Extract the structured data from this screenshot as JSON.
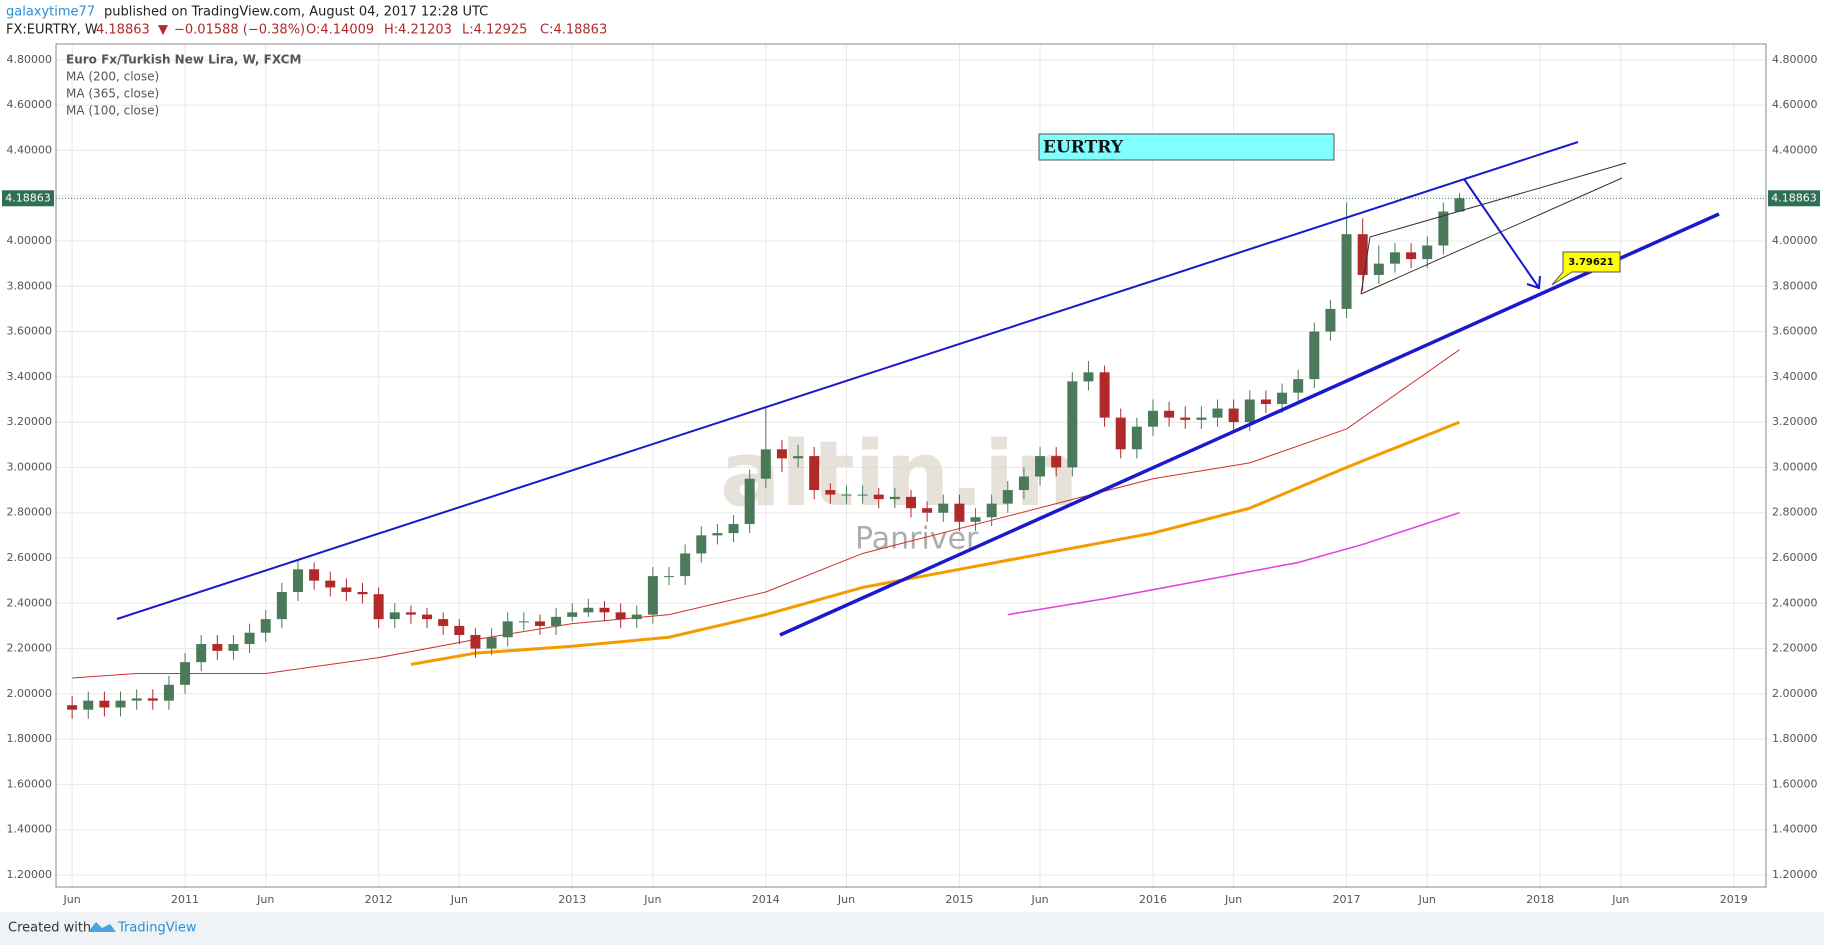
{
  "header": {
    "author": "galaxytime77",
    "published": "published on TradingView.com, August 04, 2017 12:28 UTC",
    "symbol": "FX:EURTRY, W",
    "price": "4.18863",
    "change": "−0.01588 (−0.38%)",
    "open": "O:4.14009",
    "high": "H:4.21203",
    "low": "L:4.12925",
    "close": "C:4.18863"
  },
  "footer": {
    "created": "Created with",
    "brand": "TradingView"
  },
  "watermark": {
    "logo": "altin.in",
    "name": "Panriver"
  },
  "chart_data": {
    "type": "candlestick",
    "title": "Euro Fx/Turkish New Lira, W, FXCM",
    "annotation": "EURTRY",
    "target_label": 3.79621,
    "last_price": 4.18863,
    "last_price_color": "#2f6f55",
    "grid": true,
    "xlim": [
      "2010-05",
      "2019-03"
    ],
    "ylim": [
      1.147,
      4.87
    ],
    "xticks": [
      {
        "value": "2010-06",
        "label": "Jun"
      },
      {
        "value": "2011-01",
        "label": "2011"
      },
      {
        "value": "2011-06",
        "label": "Jun"
      },
      {
        "value": "2012-01",
        "label": "2012"
      },
      {
        "value": "2012-06",
        "label": "Jun"
      },
      {
        "value": "2013-01",
        "label": "2013"
      },
      {
        "value": "2013-06",
        "label": "Jun"
      },
      {
        "value": "2014-01",
        "label": "2014"
      },
      {
        "value": "2014-06",
        "label": "Jun"
      },
      {
        "value": "2015-01",
        "label": "2015"
      },
      {
        "value": "2015-06",
        "label": "Jun"
      },
      {
        "value": "2016-01",
        "label": "2016"
      },
      {
        "value": "2016-06",
        "label": "Jun"
      },
      {
        "value": "2017-01",
        "label": "2017"
      },
      {
        "value": "2017-06",
        "label": "Jun"
      },
      {
        "value": "2018-01",
        "label": "2018"
      },
      {
        "value": "2018-06",
        "label": "Jun"
      },
      {
        "value": "2019-01",
        "label": "2019"
      }
    ],
    "yticks": [
      {
        "value": 1.2,
        "label": "1.20000"
      },
      {
        "value": 1.4,
        "label": "1.40000"
      },
      {
        "value": 1.6,
        "label": "1.60000"
      },
      {
        "value": 1.8,
        "label": "1.80000"
      },
      {
        "value": 2.0,
        "label": "2.00000"
      },
      {
        "value": 2.2,
        "label": "2.20000"
      },
      {
        "value": 2.4,
        "label": "2.40000"
      },
      {
        "value": 2.6,
        "label": "2.60000"
      },
      {
        "value": 2.8,
        "label": "2.80000"
      },
      {
        "value": 3.0,
        "label": "3.00000"
      },
      {
        "value": 3.2,
        "label": "3.20000"
      },
      {
        "value": 3.4,
        "label": "3.40000"
      },
      {
        "value": 3.6,
        "label": "3.60000"
      },
      {
        "value": 3.8,
        "label": "3.80000"
      },
      {
        "value": 4.0,
        "label": "4.00000"
      },
      {
        "value": 4.2,
        "label": "4.20000"
      },
      {
        "value": 4.4,
        "label": "4.40000"
      },
      {
        "value": 4.6,
        "label": "4.60000"
      },
      {
        "value": 4.8,
        "label": "4.80000"
      }
    ],
    "candles": {
      "up_color": "#4a7a5a",
      "down_color": "#b02a2a",
      "x": [
        "2010-06",
        "2010-07",
        "2010-08",
        "2010-09",
        "2010-10",
        "2010-11",
        "2010-12",
        "2011-01",
        "2011-02",
        "2011-03",
        "2011-04",
        "2011-05",
        "2011-06",
        "2011-07",
        "2011-08",
        "2011-09",
        "2011-10",
        "2011-11",
        "2011-12",
        "2012-01",
        "2012-02",
        "2012-03",
        "2012-04",
        "2012-05",
        "2012-06",
        "2012-07",
        "2012-08",
        "2012-09",
        "2012-10",
        "2012-11",
        "2012-12",
        "2013-01",
        "2013-02",
        "2013-03",
        "2013-04",
        "2013-05",
        "2013-06",
        "2013-07",
        "2013-08",
        "2013-09",
        "2013-10",
        "2013-11",
        "2013-12",
        "2014-01",
        "2014-02",
        "2014-03",
        "2014-04",
        "2014-05",
        "2014-06",
        "2014-07",
        "2014-08",
        "2014-09",
        "2014-10",
        "2014-11",
        "2014-12",
        "2015-01",
        "2015-02",
        "2015-03",
        "2015-04",
        "2015-05",
        "2015-06",
        "2015-07",
        "2015-08",
        "2015-09",
        "2015-10",
        "2015-11",
        "2015-12",
        "2016-01",
        "2016-02",
        "2016-03",
        "2016-04",
        "2016-05",
        "2016-06",
        "2016-07",
        "2016-08",
        "2016-09",
        "2016-10",
        "2016-11",
        "2016-12",
        "2017-01",
        "2017-02",
        "2017-03",
        "2017-04",
        "2017-05",
        "2017-06",
        "2017-07",
        "2017-08"
      ],
      "open": [
        1.95,
        1.93,
        1.97,
        1.94,
        1.97,
        1.98,
        1.97,
        2.04,
        2.14,
        2.22,
        2.19,
        2.22,
        2.27,
        2.33,
        2.45,
        2.55,
        2.5,
        2.47,
        2.45,
        2.44,
        2.33,
        2.36,
        2.35,
        2.33,
        2.3,
        2.26,
        2.2,
        2.25,
        2.32,
        2.32,
        2.3,
        2.34,
        2.36,
        2.38,
        2.36,
        2.33,
        2.35,
        2.52,
        2.52,
        2.62,
        2.7,
        2.71,
        2.75,
        2.95,
        3.08,
        3.04,
        3.05,
        2.9,
        2.88,
        2.88,
        2.88,
        2.86,
        2.87,
        2.82,
        2.8,
        2.84,
        2.76,
        2.78,
        2.84,
        2.9,
        2.96,
        3.05,
        3.0,
        3.38,
        3.42,
        3.22,
        3.08,
        3.18,
        3.25,
        3.22,
        3.21,
        3.22,
        3.26,
        3.2,
        3.3,
        3.28,
        3.33,
        3.39,
        3.6,
        3.7,
        4.03,
        3.85,
        3.9,
        3.95,
        3.92,
        3.98,
        4.13
      ],
      "high": [
        1.99,
        2.01,
        2.01,
        2.01,
        2.02,
        2.02,
        2.08,
        2.18,
        2.26,
        2.26,
        2.26,
        2.31,
        2.37,
        2.49,
        2.59,
        2.58,
        2.54,
        2.51,
        2.49,
        2.47,
        2.4,
        2.39,
        2.38,
        2.36,
        2.33,
        2.29,
        2.29,
        2.36,
        2.36,
        2.35,
        2.38,
        2.4,
        2.42,
        2.41,
        2.4,
        2.39,
        2.56,
        2.56,
        2.66,
        2.74,
        2.75,
        2.79,
        2.99,
        3.26,
        3.12,
        3.1,
        3.09,
        2.93,
        2.92,
        2.92,
        2.91,
        2.91,
        2.9,
        2.85,
        2.88,
        2.88,
        2.82,
        2.88,
        2.94,
        3.0,
        3.09,
        3.09,
        3.42,
        3.47,
        3.45,
        3.26,
        3.22,
        3.3,
        3.29,
        3.27,
        3.27,
        3.3,
        3.3,
        3.34,
        3.34,
        3.37,
        3.43,
        3.64,
        3.74,
        4.17,
        4.1,
        3.98,
        3.99,
        3.99,
        4.02,
        4.17,
        4.21203
      ],
      "low": [
        1.89,
        1.89,
        1.9,
        1.9,
        1.93,
        1.93,
        1.93,
        2.0,
        2.1,
        2.15,
        2.15,
        2.18,
        2.23,
        2.29,
        2.41,
        2.46,
        2.43,
        2.41,
        2.4,
        2.29,
        2.29,
        2.31,
        2.29,
        2.26,
        2.22,
        2.16,
        2.17,
        2.21,
        2.28,
        2.26,
        2.26,
        2.32,
        2.34,
        2.32,
        2.29,
        2.29,
        2.31,
        2.48,
        2.48,
        2.58,
        2.66,
        2.67,
        2.71,
        2.91,
        2.98,
        3.0,
        2.86,
        2.84,
        2.84,
        2.84,
        2.82,
        2.82,
        2.78,
        2.76,
        2.76,
        2.72,
        2.72,
        2.74,
        2.8,
        2.86,
        2.92,
        2.96,
        2.96,
        3.34,
        3.18,
        3.04,
        3.04,
        3.14,
        3.18,
        3.17,
        3.17,
        3.18,
        3.16,
        3.16,
        3.24,
        3.24,
        3.29,
        3.35,
        3.56,
        3.66,
        3.78,
        3.81,
        3.86,
        3.88,
        3.88,
        3.94,
        4.12925
      ],
      "close": [
        1.93,
        1.97,
        1.94,
        1.97,
        1.98,
        1.97,
        2.04,
        2.14,
        2.22,
        2.19,
        2.22,
        2.27,
        2.33,
        2.45,
        2.55,
        2.5,
        2.47,
        2.45,
        2.44,
        2.33,
        2.36,
        2.35,
        2.33,
        2.3,
        2.26,
        2.2,
        2.25,
        2.32,
        2.32,
        2.3,
        2.34,
        2.36,
        2.38,
        2.36,
        2.33,
        2.35,
        2.52,
        2.52,
        2.62,
        2.7,
        2.71,
        2.75,
        2.95,
        3.08,
        3.04,
        3.05,
        2.9,
        2.88,
        2.88,
        2.88,
        2.86,
        2.87,
        2.82,
        2.8,
        2.84,
        2.76,
        2.78,
        2.84,
        2.9,
        2.96,
        3.05,
        3.0,
        3.38,
        3.42,
        3.22,
        3.08,
        3.18,
        3.25,
        3.22,
        3.21,
        3.22,
        3.26,
        3.2,
        3.3,
        3.28,
        3.33,
        3.39,
        3.6,
        3.7,
        4.03,
        3.85,
        3.9,
        3.95,
        3.92,
        3.98,
        4.13,
        4.18863
      ]
    },
    "series": [
      {
        "name": "MA (200, close)",
        "color": "#f59b00",
        "width": 3,
        "x": [
          "2012-03",
          "2012-07",
          "2013-01",
          "2013-07",
          "2014-01",
          "2014-07",
          "2015-01",
          "2015-07",
          "2016-01",
          "2016-07",
          "2017-01",
          "2017-08"
        ],
        "values": [
          2.13,
          2.18,
          2.21,
          2.25,
          2.35,
          2.47,
          2.55,
          2.63,
          2.71,
          2.82,
          3.0,
          3.2
        ]
      },
      {
        "name": "MA (365, close)",
        "color": "#e040e0",
        "width": 1.5,
        "x": [
          "2015-04",
          "2015-10",
          "2016-04",
          "2016-10",
          "2017-02",
          "2017-08"
        ],
        "values": [
          2.35,
          2.42,
          2.5,
          2.58,
          2.66,
          2.8
        ]
      },
      {
        "name": "MA (100, close)",
        "color": "#d03030",
        "width": 1,
        "x": [
          "2010-06",
          "2010-10",
          "2011-06",
          "2012-01",
          "2012-07",
          "2013-01",
          "2013-07",
          "2014-01",
          "2014-07",
          "2015-01",
          "2015-07",
          "2016-01",
          "2016-07",
          "2017-01",
          "2017-08"
        ],
        "values": [
          2.07,
          2.09,
          2.09,
          2.16,
          2.24,
          2.31,
          2.35,
          2.45,
          2.62,
          2.73,
          2.84,
          2.95,
          3.02,
          3.17,
          3.52
        ]
      }
    ]
  }
}
